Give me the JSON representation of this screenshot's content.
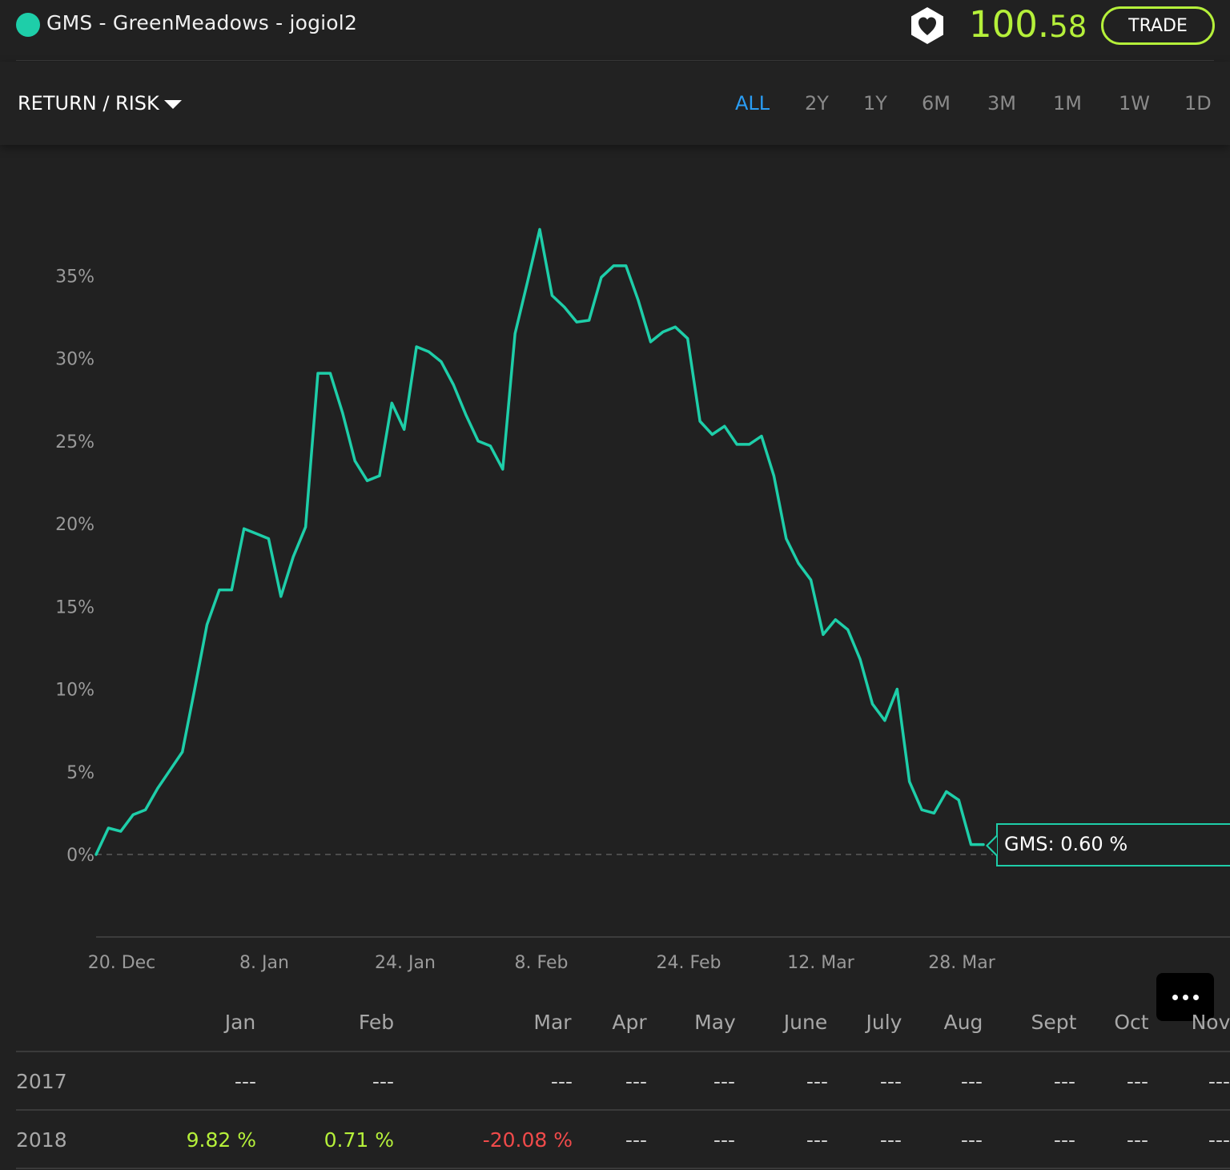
{
  "header": {
    "title": "GMS - GreenMeadows - jogiol2",
    "price_int": "100.",
    "price_dec": "58",
    "trade_label": "TRADE",
    "accent": "#b5f03a",
    "series_color": "#1ecea9"
  },
  "toolbar": {
    "mode_label": "RETURN / RISK",
    "ranges": [
      "ALL",
      "2Y",
      "1Y",
      "6M",
      "3M",
      "1M",
      "1W",
      "1D"
    ],
    "active_range": "ALL"
  },
  "chart_data": {
    "type": "line",
    "y_ticks": [
      "35%",
      "30%",
      "25%",
      "20%",
      "15%",
      "10%",
      "5%",
      "0%"
    ],
    "x_ticks": [
      "20. Dec",
      "8. Jan",
      "24. Jan",
      "8. Feb",
      "24. Feb",
      "12. Mar",
      "28. Mar"
    ],
    "ylim": [
      0,
      37.8
    ],
    "series": [
      {
        "values": [
          0.0,
          1.6,
          1.4,
          2.4,
          2.7,
          4.0,
          5.1,
          6.2,
          10.0,
          13.9,
          16.0,
          16.0,
          19.7,
          19.4,
          19.1,
          15.6,
          18.0,
          19.8,
          29.1,
          29.1,
          26.7,
          23.8,
          22.6,
          22.9,
          27.3,
          25.7,
          30.7,
          30.4,
          29.8,
          28.4,
          26.6,
          25.0,
          24.7,
          23.3,
          31.5,
          34.6,
          37.8,
          33.8,
          33.1,
          32.2,
          32.3,
          34.9,
          35.6,
          35.6,
          33.5,
          31.0,
          31.6,
          31.9,
          31.2,
          26.2,
          25.4,
          25.9,
          24.8,
          24.8,
          25.3,
          22.9,
          19.1,
          17.6,
          16.6,
          13.3,
          14.2,
          13.6,
          11.8,
          9.1,
          8.1,
          10.0,
          4.4,
          2.7,
          2.5,
          3.8,
          3.3,
          0.6,
          0.6
        ]
      }
    ],
    "tooltip": "GMS: 0.60 %"
  },
  "table": {
    "months": [
      "Jan",
      "Feb",
      "Mar",
      "Apr",
      "May",
      "June",
      "July",
      "Aug",
      "Sept",
      "Oct",
      "Nov"
    ],
    "rows": [
      {
        "year": "2017",
        "values": [
          "---",
          "---",
          "---",
          "---",
          "---",
          "---",
          "---",
          "---",
          "---",
          "---",
          "---"
        ]
      },
      {
        "year": "2018",
        "values": [
          "9.82 %",
          "0.71 %",
          "-20.08 %",
          "---",
          "---",
          "---",
          "---",
          "---",
          "---",
          "---",
          "---"
        ]
      }
    ]
  }
}
